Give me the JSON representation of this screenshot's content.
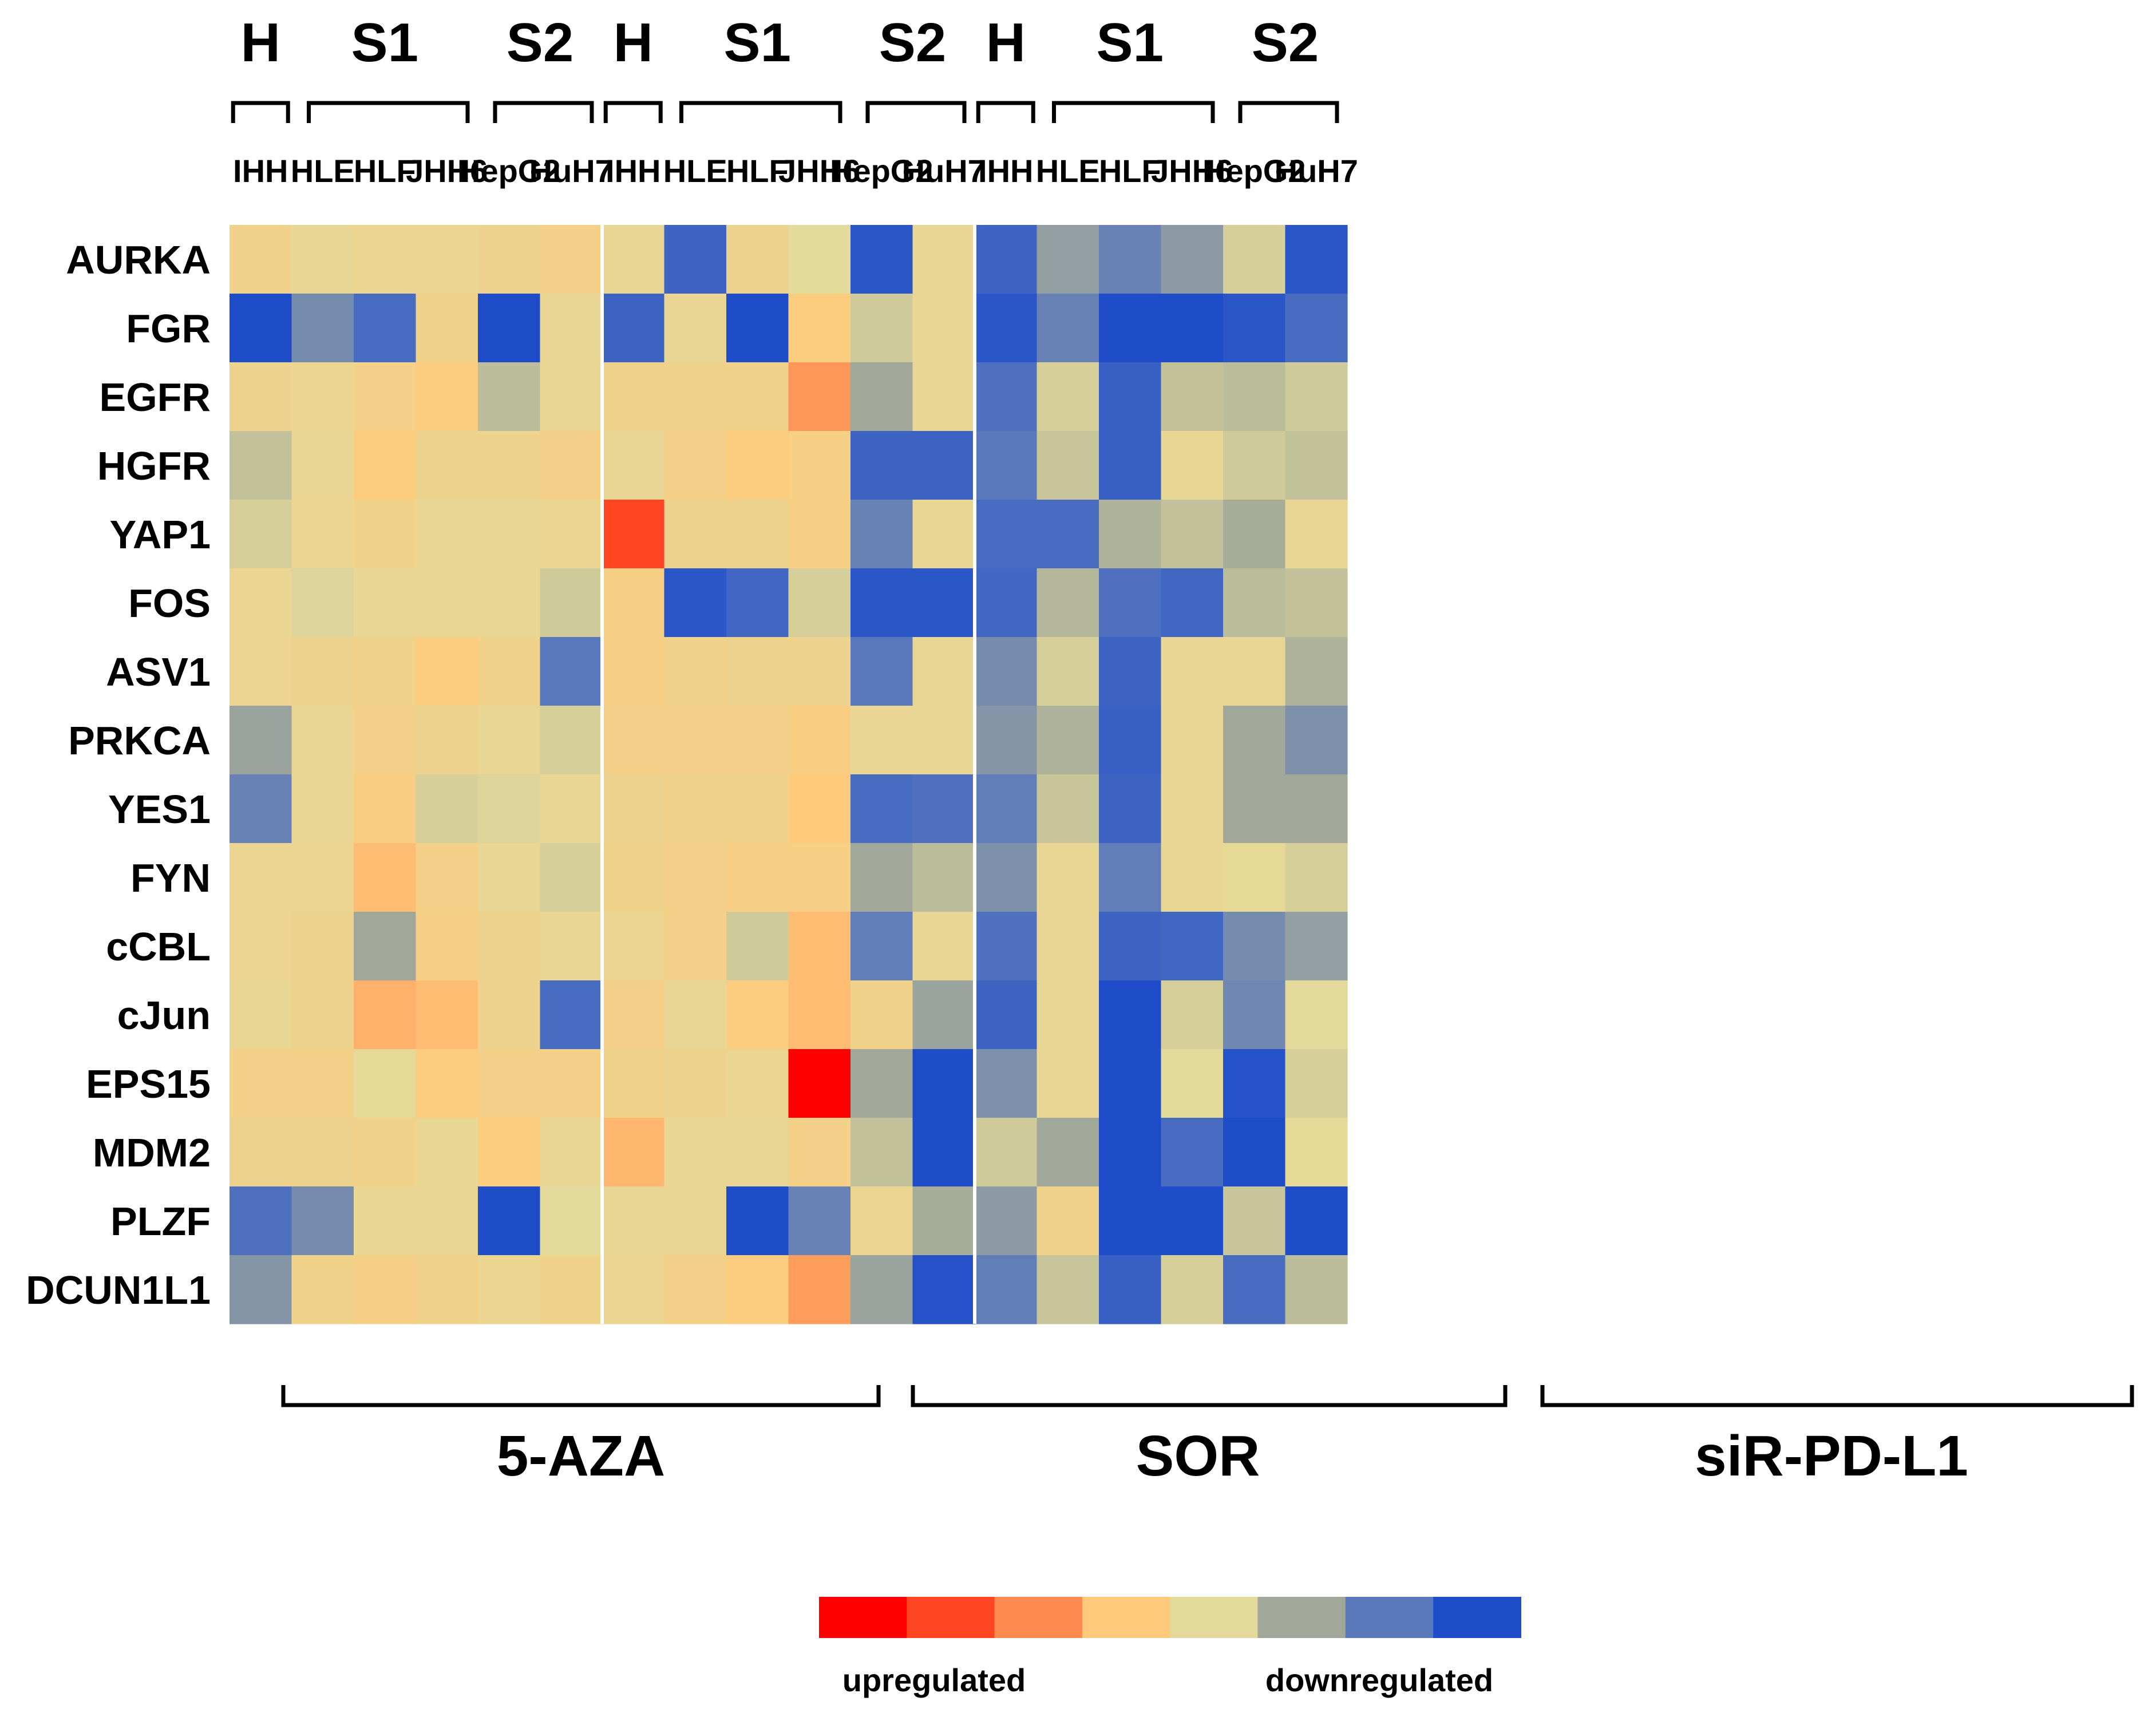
{
  "chart_data": {
    "type": "heatmap",
    "value_scale": "ordinal color index 0-7 (0 = strongest upregulation, red; 7 = strongest downregulation, blue); cells are estimated from color",
    "colorscale": [
      "#ff0000",
      "#ff4522",
      "#ff8a4f",
      "#ffca7c",
      "#e3d99a",
      "#a1a89a",
      "#5a79bc",
      "#1f4dca"
    ],
    "treatments": [
      {
        "name": "5-AZA",
        "label_key": "t0"
      },
      {
        "name": "SOR",
        "label_key": "t1"
      },
      {
        "name": "siR-PD-L1",
        "label_key": "t2"
      }
    ],
    "groups": [
      {
        "name": "H",
        "cells": [
          "IHH"
        ]
      },
      {
        "name": "S1",
        "cells": [
          "HLE",
          "HLF",
          "JHH6"
        ]
      },
      {
        "name": "S2",
        "cells": [
          "HepG2",
          "HuH7"
        ]
      }
    ],
    "columns": [
      "IHH",
      "HLE",
      "HLF",
      "JHH6",
      "HepG2",
      "HuH7",
      "IHH",
      "HLE",
      "HLF",
      "JHH6",
      "HepG2",
      "HuH7",
      "IHH",
      "HLE",
      "HLF",
      "JHH6",
      "HepG2",
      "HuH7"
    ],
    "rows": [
      "AURKA",
      "FGR",
      "EGFR",
      "HGFR",
      "YAP1",
      "FOS",
      "ASV1",
      "PRKCA",
      "YES1",
      "FYN",
      "cCBL",
      "cJun",
      "EPS15",
      "MDM2",
      "PLZF",
      "DCUN1L1"
    ],
    "values": [
      [
        3.5,
        3.8,
        3.7,
        3.7,
        3.6,
        3.4,
        3.8,
        6.5,
        3.6,
        4.0,
        6.8,
        3.8,
        6.5,
        5.2,
        5.8,
        5.3,
        4.2,
        6.8
      ],
      [
        7.0,
        5.6,
        6.3,
        3.5,
        7.2,
        3.8,
        6.5,
        3.8,
        7.0,
        3.1,
        4.3,
        3.8,
        6.8,
        5.8,
        7.0,
        7.1,
        6.8,
        6.3
      ],
      [
        3.6,
        3.7,
        3.4,
        3.1,
        4.6,
        3.8,
        3.5,
        3.5,
        3.5,
        2.2,
        5.0,
        3.8,
        6.2,
        4.2,
        6.6,
        4.5,
        4.6,
        4.3
      ],
      [
        4.5,
        3.8,
        3.1,
        3.6,
        3.6,
        3.4,
        3.8,
        3.4,
        3.1,
        3.3,
        6.5,
        6.5,
        6.0,
        4.4,
        6.6,
        3.8,
        4.3,
        4.5
      ],
      [
        4.2,
        3.7,
        3.5,
        3.8,
        3.8,
        3.7,
        1.0,
        3.6,
        3.6,
        3.3,
        5.8,
        3.8,
        6.3,
        6.3,
        4.8,
        4.5,
        4.9,
        3.8
      ],
      [
        3.7,
        4.1,
        3.8,
        3.8,
        3.8,
        4.3,
        3.3,
        6.8,
        6.4,
        4.2,
        6.8,
        6.8,
        6.4,
        4.7,
        6.2,
        6.4,
        4.6,
        4.5
      ],
      [
        3.7,
        3.6,
        3.5,
        3.1,
        3.5,
        6.0,
        3.3,
        3.5,
        3.6,
        3.6,
        6.0,
        3.8,
        5.6,
        4.2,
        6.5,
        3.8,
        3.8,
        4.8
      ],
      [
        5.1,
        3.8,
        3.4,
        3.6,
        3.8,
        4.2,
        3.4,
        3.4,
        3.4,
        3.2,
        3.8,
        3.8,
        5.4,
        4.8,
        6.6,
        3.8,
        5.0,
        5.5
      ],
      [
        5.8,
        3.8,
        3.2,
        4.2,
        4.1,
        3.8,
        3.6,
        3.5,
        3.5,
        3.0,
        6.3,
        6.2,
        5.9,
        4.4,
        6.5,
        3.8,
        5.0,
        5.0
      ],
      [
        3.7,
        3.7,
        2.8,
        3.4,
        3.8,
        4.2,
        3.5,
        3.4,
        3.3,
        3.3,
        5.0,
        4.6,
        5.5,
        3.8,
        5.9,
        3.8,
        3.9,
        4.2
      ],
      [
        3.7,
        3.6,
        5.0,
        3.3,
        3.6,
        3.8,
        3.7,
        3.4,
        4.3,
        2.8,
        5.9,
        3.8,
        6.2,
        3.8,
        6.5,
        6.4,
        5.6,
        5.2
      ],
      [
        3.8,
        3.6,
        2.6,
        2.8,
        3.6,
        6.3,
        3.4,
        3.8,
        3.1,
        2.8,
        3.5,
        5.1,
        6.5,
        3.8,
        7.2,
        4.2,
        5.7,
        4.0
      ],
      [
        3.4,
        3.4,
        3.9,
        3.1,
        3.4,
        3.4,
        3.5,
        3.6,
        3.7,
        0.0,
        5.0,
        7.1,
        5.5,
        3.8,
        7.2,
        4.0,
        6.9,
        4.2
      ],
      [
        3.6,
        3.6,
        3.5,
        3.8,
        3.1,
        3.8,
        2.7,
        3.8,
        3.8,
        3.4,
        4.5,
        7.0,
        4.3,
        5.0,
        7.2,
        6.3,
        7.0,
        3.9
      ],
      [
        6.2,
        5.6,
        3.8,
        3.8,
        7.2,
        4.0,
        3.8,
        3.8,
        7.0,
        5.8,
        3.7,
        4.9,
        5.3,
        3.5,
        7.2,
        7.1,
        4.4,
        7.0
      ],
      [
        5.4,
        3.5,
        3.3,
        3.5,
        3.7,
        3.5,
        3.7,
        3.4,
        3.1,
        2.3,
        5.1,
        6.9,
        5.9,
        4.4,
        6.6,
        4.2,
        6.3,
        4.6
      ]
    ],
    "legend": {
      "low_label": "upregulated",
      "high_label": "downregulated"
    },
    "labels": {
      "t0": "5-AZA",
      "t1": "SOR",
      "t2": "siR-PD-L1"
    }
  }
}
